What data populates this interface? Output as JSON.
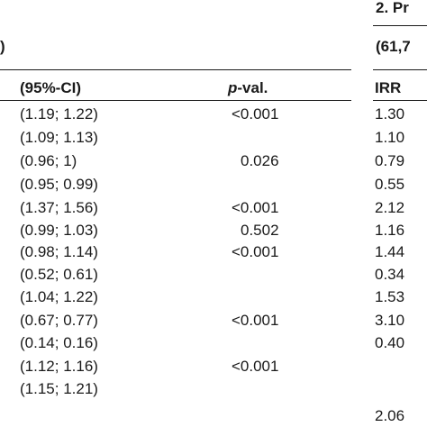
{
  "header": {
    "group_title": "2. Pr",
    "left_fragment": ")",
    "right_fragment": "(61,7",
    "col_ci": "(95%-CI)",
    "col_p_italic": "p",
    "col_p_rest": "-val.",
    "col_irr": "IRR"
  },
  "rows": [
    {
      "ci": "(1.19; 1.22)",
      "p": "<0.001",
      "irr": "1.30"
    },
    {
      "ci": "(1.09; 1.13)",
      "p": "",
      "irr": "1.10"
    },
    {
      "ci": "(0.96; 1)",
      "p": "0.026",
      "irr": "0.79"
    },
    {
      "ci": "(0.95; 0.99)",
      "p": "",
      "irr": "0.55"
    },
    {
      "ci": "(1.37; 1.56)",
      "p": "<0.001",
      "irr": "2.12"
    },
    {
      "ci": "(0.99; 1.03)",
      "p": "0.502",
      "irr": "1.16"
    },
    {
      "ci": "(0.98; 1.14)",
      "p": "<0.001",
      "irr": "1.44"
    },
    {
      "ci": "(0.52; 0.61)",
      "p": "",
      "irr": "0.34"
    },
    {
      "ci": "(1.04; 1.22)",
      "p": "",
      "irr": "1.53"
    },
    {
      "ci": "(0.67; 0.77)",
      "p": "<0.001",
      "irr": "3.10"
    },
    {
      "ci": "(0.14; 0.16)",
      "p": "",
      "irr": "0.40"
    },
    {
      "ci": "(1.12; 1.16)",
      "p": "<0.001",
      "irr": ""
    },
    {
      "ci": "(1.15; 1.21)",
      "p": "",
      "irr": ""
    },
    {
      "ci": "",
      "p": "",
      "irr": "2.06"
    }
  ]
}
